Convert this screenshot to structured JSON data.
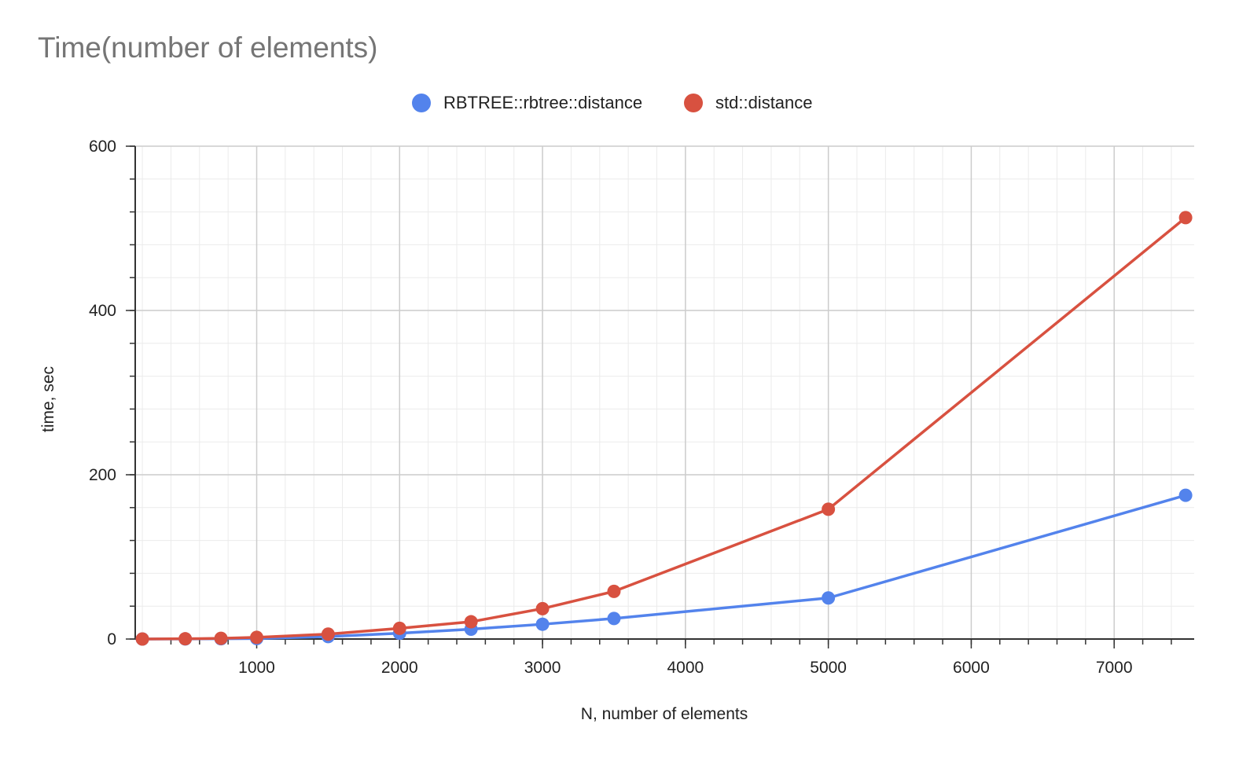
{
  "chart_data": {
    "type": "line",
    "title": "Time(number of elements)",
    "xlabel": "N, number of elements",
    "ylabel": "time, sec",
    "xlim": [
      150,
      7560
    ],
    "ylim": [
      0,
      600
    ],
    "x_ticks": [
      1000,
      2000,
      3000,
      4000,
      5000,
      6000,
      7000
    ],
    "y_ticks": [
      0,
      200,
      400,
      600
    ],
    "x_minor_step": 200,
    "y_minor_step": 40,
    "grid": true,
    "legend": "top-center",
    "series": [
      {
        "name": "RBTREE::rbtree::distance",
        "color": "#5383ec",
        "x": [
          200,
          500,
          750,
          1000,
          1500,
          2000,
          2500,
          3000,
          3500,
          5000,
          7500
        ],
        "y": [
          0.0,
          0.1,
          0.3,
          0.6,
          3,
          7,
          12,
          18,
          25,
          50,
          175
        ]
      },
      {
        "name": "std::distance",
        "color": "#d85140",
        "x": [
          200,
          500,
          750,
          1000,
          1500,
          2000,
          2500,
          3000,
          3500,
          5000,
          7500
        ],
        "y": [
          0.0,
          0.3,
          0.8,
          2,
          6,
          13,
          21,
          37,
          58,
          158,
          513
        ]
      }
    ]
  }
}
